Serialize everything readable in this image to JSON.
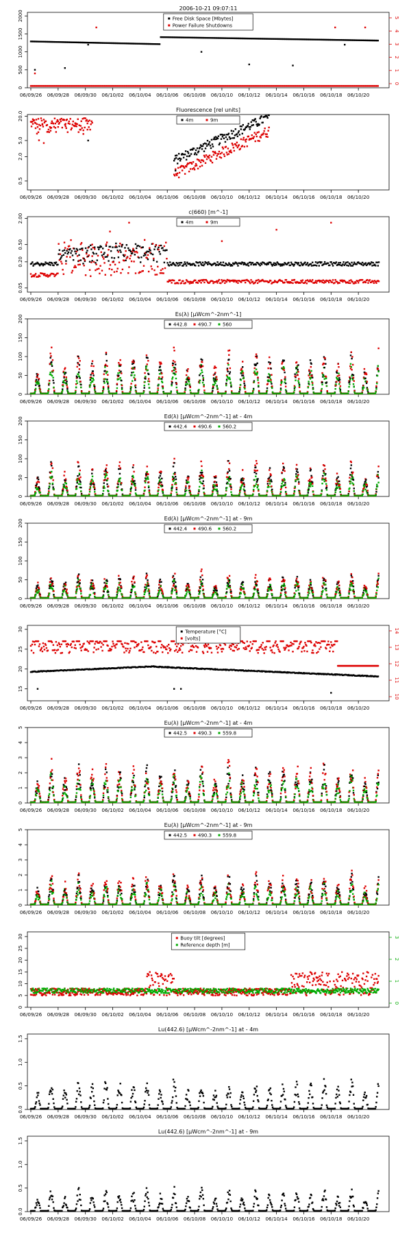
{
  "page": {
    "timestamp": "2006-10-21 09:07:11"
  },
  "x_axis": {
    "tick_labels": [
      "06/09/26",
      "06/09/28",
      "06/09/30",
      "06/10/02",
      "06/10/04",
      "06/10/06",
      "06/10/08",
      "06/10/10",
      "06/10/12",
      "06/10/14",
      "06/10/16",
      "06/10/18",
      "06/10/20"
    ]
  },
  "chart_data": [
    {
      "type": "scatter",
      "title": "",
      "legend": [
        "Free Disk Space [Mbytes]",
        "Power Failure Shutdowns"
      ],
      "legend_colors": [
        "#000000",
        "#dd0000"
      ],
      "y_ticks": [
        "0",
        "500",
        "1000",
        "1500",
        "2000"
      ],
      "ylim": [
        0,
        2100
      ],
      "right_axis": {
        "ticks": [
          "0",
          "1",
          "2",
          "3",
          "4",
          "5"
        ],
        "color": "#dd0000"
      },
      "pattern": "disk"
    },
    {
      "type": "scatter",
      "title": "Fluorescence [rel units]",
      "legend": [
        "4m",
        "9m"
      ],
      "legend_colors": [
        "#000000",
        "#dd0000"
      ],
      "y_ticks": [
        "0.5",
        "2.0",
        "5.0",
        "20.0"
      ],
      "ylim": [
        0.3,
        22
      ],
      "log_scale": true,
      "pattern": "fluor"
    },
    {
      "type": "scatter",
      "title": "c(660) [m^-1]",
      "legend": [
        "4m",
        "9m"
      ],
      "legend_colors": [
        "#000000",
        "#dd0000"
      ],
      "y_ticks": [
        "0.05",
        "0.20",
        "0.50",
        "2.00"
      ],
      "ylim": [
        0.04,
        2.2
      ],
      "log_scale": true,
      "pattern": "beam"
    },
    {
      "type": "scatter",
      "title": "Es(λ) [μWcm^-2nm^-1]",
      "legend": [
        "442.8",
        "490.7",
        "560"
      ],
      "legend_colors": [
        "#000000",
        "#dd0000",
        "#00aa00"
      ],
      "y_ticks": [
        "0",
        "50",
        "100",
        "150",
        "200"
      ],
      "ylim": [
        0,
        200
      ],
      "pattern": "diurnal",
      "peak": 100
    },
    {
      "type": "scatter",
      "title": "Ed(λ) [μWcm^-2nm^-1] at - 4m",
      "legend": [
        "442.4",
        "490.6",
        "560.2"
      ],
      "legend_colors": [
        "#000000",
        "#dd0000",
        "#00aa00"
      ],
      "y_ticks": [
        "0",
        "50",
        "100",
        "150",
        "200"
      ],
      "ylim": [
        0,
        200
      ],
      "pattern": "diurnal",
      "peak": 80
    },
    {
      "type": "scatter",
      "title": "Ed(λ) [μWcm^-2nm^-1] at - 9m",
      "legend": [
        "442.4",
        "490.6",
        "560.2"
      ],
      "legend_colors": [
        "#000000",
        "#dd0000",
        "#00aa00"
      ],
      "y_ticks": [
        "0",
        "50",
        "100",
        "150",
        "200"
      ],
      "ylim": [
        0,
        200
      ],
      "pattern": "diurnal",
      "peak": 60
    },
    {
      "type": "scatter",
      "title": "",
      "legend": [
        "Temperature [°C]",
        "[volts]"
      ],
      "legend_colors": [
        "#000000",
        "#dd0000"
      ],
      "y_ticks": [
        "15",
        "20",
        "25",
        "30"
      ],
      "ylim": [
        12,
        31
      ],
      "right_axis": {
        "ticks": [
          "10",
          "11",
          "12",
          "13",
          "14"
        ],
        "color": "#dd0000"
      },
      "pattern": "temp"
    },
    {
      "type": "scatter",
      "title": "Eu(λ) [μWcm^-2nm^-1] at - 4m",
      "legend": [
        "442.5",
        "490.3",
        "559.8"
      ],
      "legend_colors": [
        "#000000",
        "#dd0000",
        "#00aa00"
      ],
      "y_ticks": [
        "0",
        "1",
        "2",
        "3",
        "4",
        "5"
      ],
      "ylim": [
        0,
        5
      ],
      "pattern": "diurnal",
      "peak": 2.3
    },
    {
      "type": "scatter",
      "title": "Eu(λ) [μWcm^-2nm^-1] at - 9m",
      "legend": [
        "442.5",
        "490.3",
        "559.8"
      ],
      "legend_colors": [
        "#000000",
        "#dd0000",
        "#00aa00"
      ],
      "y_ticks": [
        "0",
        "1",
        "2",
        "3",
        "4",
        "5"
      ],
      "ylim": [
        0,
        5
      ],
      "pattern": "diurnal",
      "peak": 1.8
    },
    {
      "type": "scatter",
      "title": "",
      "legend": [
        "Buoy tilt [degrees]",
        "Reference depth [m]"
      ],
      "legend_colors": [
        "#dd0000",
        "#00aa00"
      ],
      "y_ticks": [
        "0",
        "5",
        "10",
        "15",
        "20",
        "25",
        "30"
      ],
      "ylim": [
        0,
        32
      ],
      "right_axis": {
        "ticks": [
          "0",
          "1",
          "2",
          "3"
        ],
        "color": "#00aa00"
      },
      "pattern": "tilt"
    },
    {
      "type": "scatter",
      "title": "Lu(442.6) [μWcm^-2nm^-1] at - 4m",
      "legend": [],
      "legend_colors": [],
      "y_ticks": [
        "0.0",
        "0.5",
        "1.0",
        "1.5"
      ],
      "ylim": [
        0,
        1.6
      ],
      "pattern": "diurnal_single",
      "peak": 0.6
    },
    {
      "type": "scatter",
      "title": "Lu(442.6) [μWcm^-2nm^-1] at - 9m",
      "legend": [],
      "legend_colors": [],
      "y_ticks": [
        "0.0",
        "0.5",
        "1.0",
        "1.5"
      ],
      "ylim": [
        0,
        1.6
      ],
      "pattern": "diurnal_single",
      "peak": 0.45
    }
  ]
}
